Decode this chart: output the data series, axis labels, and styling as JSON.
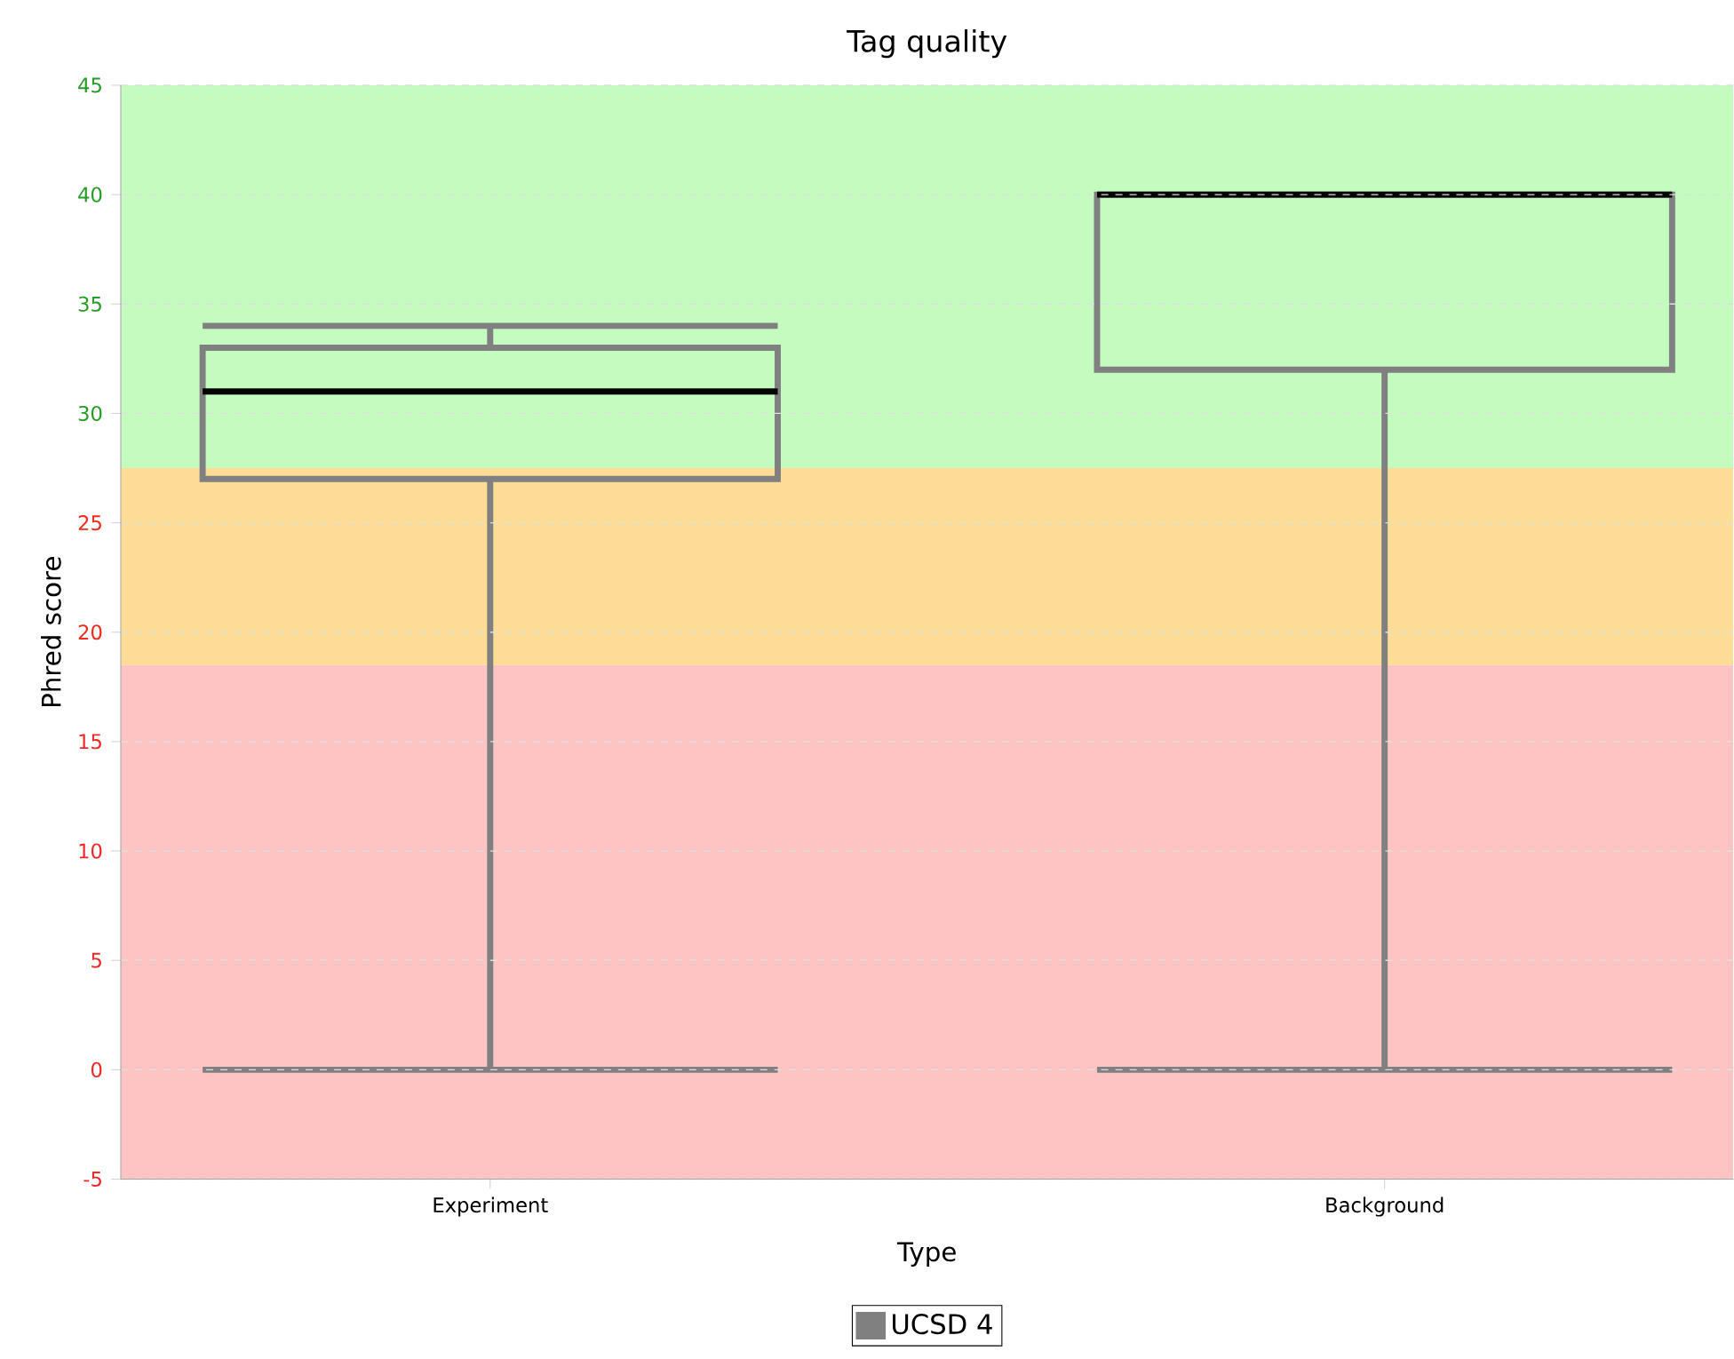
{
  "chart_data": {
    "type": "box",
    "title": "Tag quality",
    "xlabel": "Type",
    "ylabel": "Phred score",
    "categories": [
      "Experiment",
      "Background"
    ],
    "series": [
      {
        "name": "UCSD 4",
        "color": "#808080",
        "boxes": [
          {
            "low": 0,
            "q1": 27,
            "median": 31,
            "q3": 33,
            "high": 34
          },
          {
            "low": 0,
            "q1": 32,
            "median": 40,
            "q3": 40,
            "high": 40
          }
        ]
      }
    ],
    "ylim": [
      -5,
      45
    ],
    "yticks": [
      -5,
      0,
      5,
      10,
      15,
      20,
      25,
      30,
      35,
      40,
      45
    ],
    "grid": "y",
    "legend": "bottom",
    "bands": [
      {
        "axis": "y",
        "from": -5,
        "to": 18.5,
        "color": "#fec4c4"
      },
      {
        "axis": "y",
        "from": 18.5,
        "to": 27.5,
        "color": "#fddd96"
      },
      {
        "axis": "y",
        "from": 27.5,
        "to": 45,
        "color": "#c4fcc0"
      }
    ]
  }
}
